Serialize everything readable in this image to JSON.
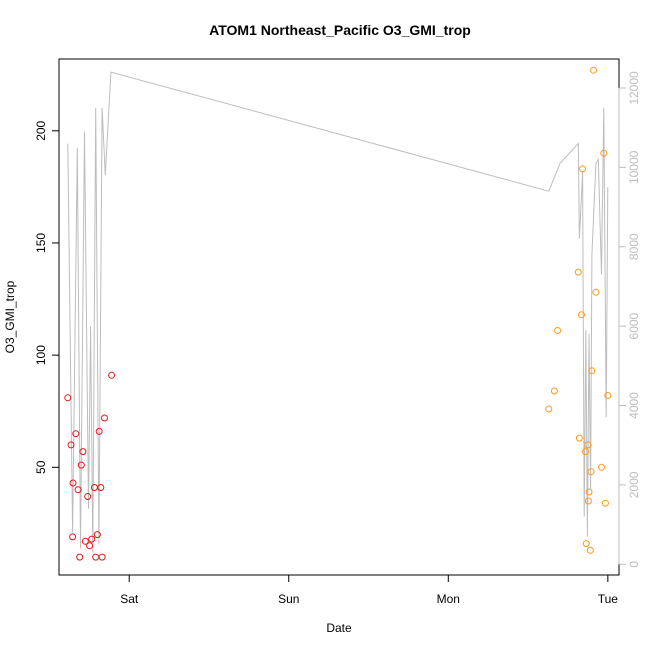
{
  "chart_data": {
    "type": "scatter",
    "title": "ATOM1 Northeast_Pacific O3_GMI_trop",
    "xlabel": "Date",
    "ylabel": "O3_GMI_trop",
    "x_ticks": [
      "Sat",
      "Sun",
      "Mon",
      "Tue"
    ],
    "x_tick_days": [
      1,
      2,
      3,
      4
    ],
    "xlim_days": [
      0.56,
      4.07
    ],
    "ylim": [
      2,
      232
    ],
    "y_ticks": [
      50,
      100,
      150,
      200
    ],
    "y2_ticks": [
      0,
      2000,
      4000,
      6000,
      8000,
      10000,
      12000
    ],
    "y2lim": [
      -270,
      12730
    ],
    "grid": false,
    "series": [
      {
        "color": "#e41a1c",
        "points": [
          [
            0.615,
            81
          ],
          [
            0.635,
            60
          ],
          [
            0.645,
            19
          ],
          [
            0.648,
            43
          ],
          [
            0.665,
            65
          ],
          [
            0.68,
            40
          ],
          [
            0.69,
            10
          ],
          [
            0.7,
            51
          ],
          [
            0.71,
            57
          ],
          [
            0.725,
            17
          ],
          [
            0.74,
            37
          ],
          [
            0.752,
            15
          ],
          [
            0.765,
            18
          ],
          [
            0.782,
            41
          ],
          [
            0.79,
            10
          ],
          [
            0.8,
            20
          ],
          [
            0.812,
            66
          ],
          [
            0.822,
            41
          ],
          [
            0.83,
            10
          ],
          [
            0.845,
            72
          ],
          [
            0.89,
            91
          ]
        ]
      },
      {
        "color": "#ff9a1a",
        "points": [
          [
            3.63,
            76
          ],
          [
            3.665,
            84
          ],
          [
            3.685,
            111
          ],
          [
            3.815,
            137
          ],
          [
            3.822,
            63
          ],
          [
            3.835,
            118
          ],
          [
            3.842,
            183
          ],
          [
            3.86,
            57
          ],
          [
            3.865,
            16
          ],
          [
            3.875,
            60
          ],
          [
            3.878,
            35
          ],
          [
            3.882,
            39
          ],
          [
            3.89,
            13
          ],
          [
            3.895,
            48
          ],
          [
            3.9,
            93
          ],
          [
            3.91,
            227
          ],
          [
            3.925,
            128
          ],
          [
            3.96,
            50
          ],
          [
            3.975,
            190
          ],
          [
            3.985,
            34
          ],
          [
            4.0,
            82
          ]
        ]
      }
    ],
    "altitude_line": {
      "color": "#bdbdbd",
      "axis": "right",
      "points": [
        [
          0.615,
          10600
        ],
        [
          0.645,
          800
        ],
        [
          0.675,
          10500
        ],
        [
          0.695,
          400
        ],
        [
          0.72,
          10900
        ],
        [
          0.745,
          1400
        ],
        [
          0.758,
          6000
        ],
        [
          0.772,
          300
        ],
        [
          0.79,
          11500
        ],
        [
          0.81,
          500
        ],
        [
          0.83,
          11500
        ],
        [
          0.85,
          9800
        ],
        [
          0.885,
          12400
        ],
        [
          3.63,
          9400
        ],
        [
          3.7,
          10100
        ],
        [
          3.815,
          10600
        ],
        [
          3.822,
          8200
        ],
        [
          3.842,
          9900
        ],
        [
          3.852,
          1200
        ],
        [
          3.862,
          5900
        ],
        [
          3.872,
          700
        ],
        [
          3.882,
          5800
        ],
        [
          3.892,
          1900
        ],
        [
          3.9,
          7800
        ],
        [
          3.925,
          10100
        ],
        [
          3.94,
          10200
        ],
        [
          3.96,
          7300
        ],
        [
          3.975,
          11500
        ],
        [
          3.99,
          3700
        ],
        [
          4.0,
          9500
        ]
      ]
    }
  }
}
